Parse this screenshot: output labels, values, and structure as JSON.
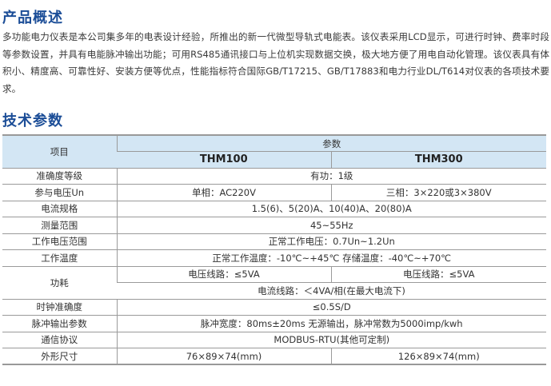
{
  "overview": {
    "title": "产品概述",
    "text": "多功能电力仪表是本公司集多年的电表设计经验，所推出的新一代微型导轨式电能表。该仪表采用LCD显示，可进行时钟、费率时段等参数设置，并具有电能脉冲输出功能；可用RS485通讯接口与上位机实现数据交换，极大地方便了用电自动化管理。该仪表具有体积小、精度高、可靠性好、安装方便等优点，性能指标符合国际GB/T17215、GB/T17883和电力行业DL/T614对仪表的各项技术要求。"
  },
  "specs": {
    "title": "技术参数",
    "header": {
      "item": "项目",
      "params": "参数",
      "models": [
        "THM100",
        "THM300"
      ]
    },
    "rows": {
      "accuracy": {
        "label": "准确度等级",
        "value": "有功：1级"
      },
      "voltage": {
        "label": "参与电压Un",
        "values": [
          "单相：AC220V",
          "三相：3×220或3×380V"
        ]
      },
      "current": {
        "label": "电流规格",
        "value": "1.5(6)、5(20)A、10(40)A、20(80)A"
      },
      "range": {
        "label": "测量范围",
        "value": "45~55Hz"
      },
      "work_voltage": {
        "label": "工作电压范围",
        "value": "正常工作电压：0.7Un~1.2Un"
      },
      "temperature": {
        "label": "工作温度",
        "value": "正常工作温度：-10℃~+45℃ 存储温度：-40℃~+70℃"
      },
      "power": {
        "label": "功耗",
        "values": [
          "电压线路：≤5VA",
          "电压线路：≤5VA"
        ],
        "current_line": "电流线路：＜4VA/相(在最大电流下)"
      },
      "clock": {
        "label": "时钟准确度",
        "value": "≤0.5S/D"
      },
      "pulse": {
        "label": "脉冲输出参数",
        "value": "脉冲宽度：80ms±20ms 无源输出，脉冲常数为5000imp/kwh"
      },
      "protocol": {
        "label": "通信协议",
        "value": "MODBUS-RTU(其他可定制)"
      },
      "size": {
        "label": "外形尺寸",
        "values": [
          "76×89×74(mm)",
          "126×89×74(mm)"
        ]
      }
    }
  }
}
